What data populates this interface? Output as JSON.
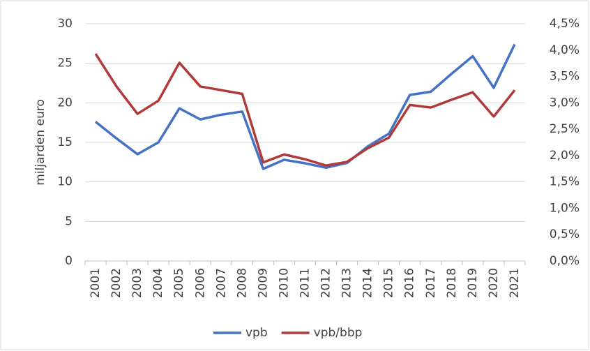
{
  "chart_data": {
    "type": "line",
    "y_label": "miljarden  euro",
    "categories": [
      "2001",
      "2002",
      "2003",
      "2004",
      "2005",
      "2006",
      "2007",
      "2008",
      "2009",
      "2010",
      "2011",
      "2012",
      "2013",
      "2014",
      "2015",
      "2016",
      "2017",
      "2018",
      "2019",
      "2020",
      "2021"
    ],
    "series": [
      {
        "name": "vpb",
        "color": "#4472c4",
        "values": [
          17.6,
          15.5,
          13.5,
          15.0,
          19.3,
          17.9,
          18.5,
          18.9,
          11.65,
          12.8,
          12.35,
          11.8,
          12.4,
          14.5,
          16.1,
          21.0,
          21.4,
          23.7,
          25.9,
          21.9,
          27.4
        ]
      },
      {
        "name": "vpb/bbp",
        "color": "#b03a3a",
        "axis": "y2",
        "values": [
          3.93,
          3.31,
          2.79,
          3.04,
          3.76,
          3.31,
          3.24,
          3.17,
          1.87,
          2.02,
          1.93,
          1.81,
          1.88,
          2.14,
          2.34,
          2.96,
          2.91,
          3.06,
          3.2,
          2.74,
          3.24
        ]
      }
    ],
    "ylim": [
      0,
      30
    ],
    "yticks": [
      0,
      5,
      10,
      15,
      20,
      25,
      30
    ],
    "y2lim": [
      0,
      4.5
    ],
    "y2ticks": [
      {
        "value": 0,
        "label": "0,0%"
      },
      {
        "value": 0.5,
        "label": "0,5%"
      },
      {
        "value": 1,
        "label": "1,0%"
      },
      {
        "value": 1.5,
        "label": "1,5%"
      },
      {
        "value": 2,
        "label": "2,0%"
      },
      {
        "value": 2.5,
        "label": "2,5%"
      },
      {
        "value": 3,
        "label": "3,0%"
      },
      {
        "value": 3.5,
        "label": "3,5%"
      },
      {
        "value": 4,
        "label": "4,0%"
      },
      {
        "value": 4.5,
        "label": "4,5%"
      }
    ],
    "grid": true,
    "legend": "bottom"
  }
}
